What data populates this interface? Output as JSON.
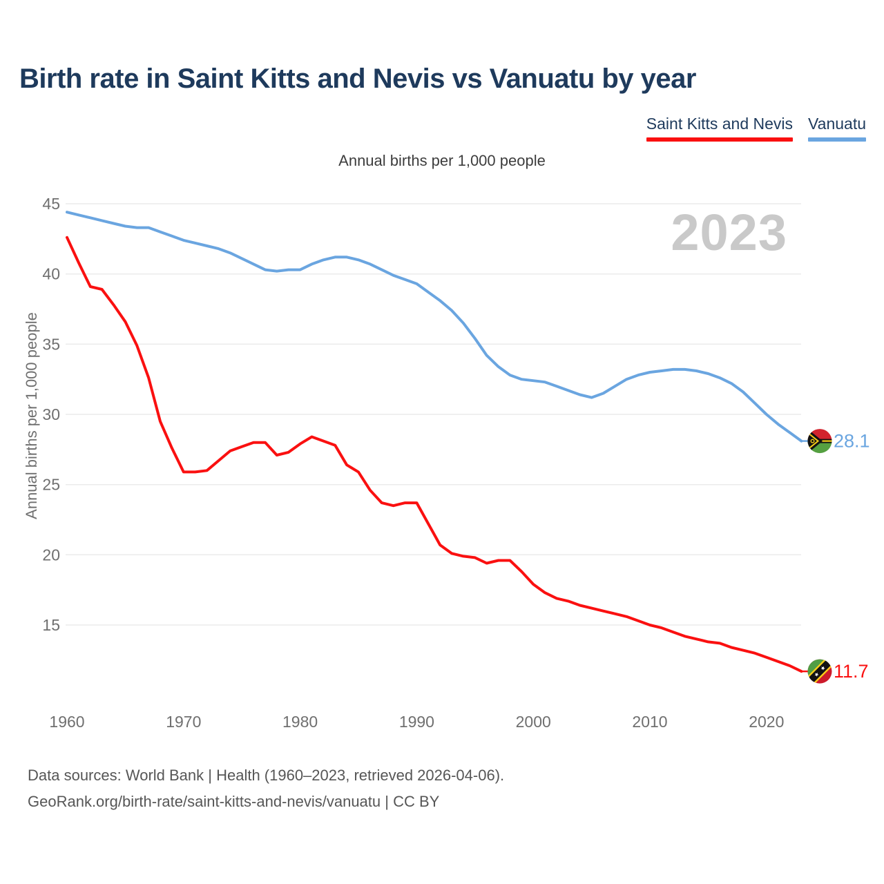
{
  "header": {
    "title": "Birth rate in Saint Kitts and Nevis vs Vanuatu by year"
  },
  "legend": {
    "items": [
      {
        "label": "Saint Kitts and Nevis",
        "color": "#fa1010"
      },
      {
        "label": "Vanuatu",
        "color": "#6aa5e0"
      }
    ]
  },
  "chart": {
    "subtitle": "Annual births per 1,000 people",
    "y_axis_title": "Annual births per 1,000 people",
    "watermark": "2023"
  },
  "footer": {
    "line1": "Data sources: World Bank | Health (1960–2023, retrieved 2026-04-06).",
    "line2": "GeoRank.org/birth-rate/saint-kitts-and-nevis/vanuatu | CC BY"
  },
  "chart_data": {
    "type": "line",
    "title": "Birth rate in Saint Kitts and Nevis vs Vanuatu by year",
    "subtitle": "Annual births per 1,000 people",
    "ylabel": "Annual births per 1,000 people",
    "xlabel": "",
    "x_start": 1960,
    "x_end": 2023,
    "xlim": [
      1960,
      2024
    ],
    "ylim": [
      10.5,
      45.5
    ],
    "x_ticks": [
      1960,
      1970,
      1980,
      1990,
      2000,
      2010,
      2020
    ],
    "y_ticks": [
      15,
      20,
      25,
      30,
      35,
      40,
      45
    ],
    "grid": "horizontal",
    "legend_position": "top-right",
    "watermark": "2023",
    "series": [
      {
        "name": "Saint Kitts and Nevis",
        "color": "#fa1010",
        "flag_icon": "saint-kitts-and-nevis-flag-icon",
        "end_label": "11.7",
        "values": [
          42.6,
          40.8,
          39.1,
          38.9,
          37.8,
          36.6,
          34.9,
          32.6,
          29.5,
          27.6,
          25.9,
          25.9,
          26.0,
          26.7,
          27.4,
          27.7,
          28.0,
          28.0,
          27.1,
          27.3,
          27.9,
          28.4,
          28.1,
          27.8,
          26.4,
          25.9,
          24.6,
          23.7,
          23.5,
          23.7,
          23.7,
          22.2,
          20.7,
          20.1,
          19.9,
          19.8,
          19.4,
          19.6,
          19.6,
          18.8,
          17.9,
          17.3,
          16.9,
          16.7,
          16.4,
          16.2,
          16.0,
          15.8,
          15.6,
          15.3,
          15.0,
          14.8,
          14.5,
          14.2,
          14.0,
          13.8,
          13.7,
          13.4,
          13.2,
          13.0,
          12.7,
          12.4,
          12.1,
          11.7
        ]
      },
      {
        "name": "Vanuatu",
        "color": "#6aa5e0",
        "flag_icon": "vanuatu-flag-icon",
        "end_label": "28.1",
        "values": [
          44.4,
          44.2,
          44.0,
          43.8,
          43.6,
          43.4,
          43.3,
          43.3,
          43.0,
          42.7,
          42.4,
          42.2,
          42.0,
          41.8,
          41.5,
          41.1,
          40.7,
          40.3,
          40.2,
          40.3,
          40.3,
          40.7,
          41.0,
          41.2,
          41.2,
          41.0,
          40.7,
          40.3,
          39.9,
          39.6,
          39.3,
          38.7,
          38.1,
          37.4,
          36.5,
          35.4,
          34.2,
          33.4,
          32.8,
          32.5,
          32.4,
          32.3,
          32.0,
          31.7,
          31.4,
          31.2,
          31.5,
          32.0,
          32.5,
          32.8,
          33.0,
          33.1,
          33.2,
          33.2,
          33.1,
          32.9,
          32.6,
          32.2,
          31.6,
          30.8,
          30.0,
          29.3,
          28.7,
          28.1
        ]
      }
    ]
  }
}
